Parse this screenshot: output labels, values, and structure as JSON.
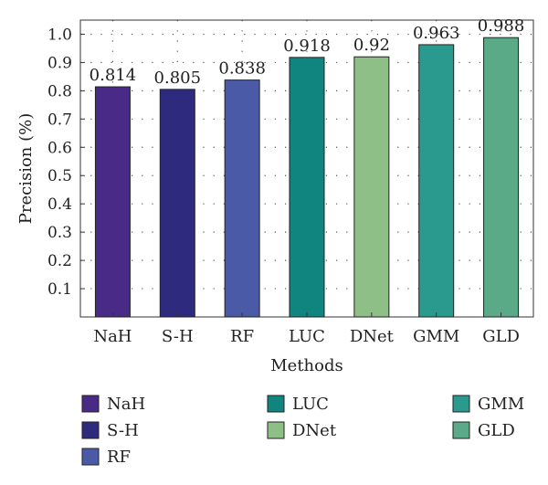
{
  "chart_data": {
    "type": "bar",
    "title": "",
    "xlabel": "Methods",
    "ylabel": "Precision (%)",
    "categories": [
      "NaH",
      "S-H",
      "RF",
      "LUC",
      "DNet",
      "GMM",
      "GLD"
    ],
    "values": [
      0.814,
      0.805,
      0.838,
      0.918,
      0.92,
      0.963,
      0.988
    ],
    "value_labels": [
      "0.814",
      "0.805",
      "0.838",
      "0.918",
      "0.92",
      "0.963",
      "0.988"
    ],
    "colors": [
      "#4a2a87",
      "#2e2a7e",
      "#4a5aa6",
      "#10847f",
      "#8ebf86",
      "#2a9a8f",
      "#5aaa88"
    ],
    "ylim": [
      0,
      1.05
    ],
    "yticks": [
      0.1,
      0.2,
      0.3,
      0.4,
      0.5,
      0.6,
      0.7,
      0.8,
      0.9,
      1.0
    ],
    "ytick_labels": [
      "0.1",
      "0.2",
      "0.3",
      "0.4",
      "0.5",
      "0.6",
      "0.7",
      "0.8",
      "0.9",
      "1.0"
    ],
    "grid": "dotted",
    "legend": {
      "placement": "bottom",
      "columns": [
        [
          "NaH",
          "S-H",
          "RF"
        ],
        [
          "LUC",
          "DNet"
        ],
        [
          "GMM",
          "GLD"
        ]
      ]
    }
  }
}
